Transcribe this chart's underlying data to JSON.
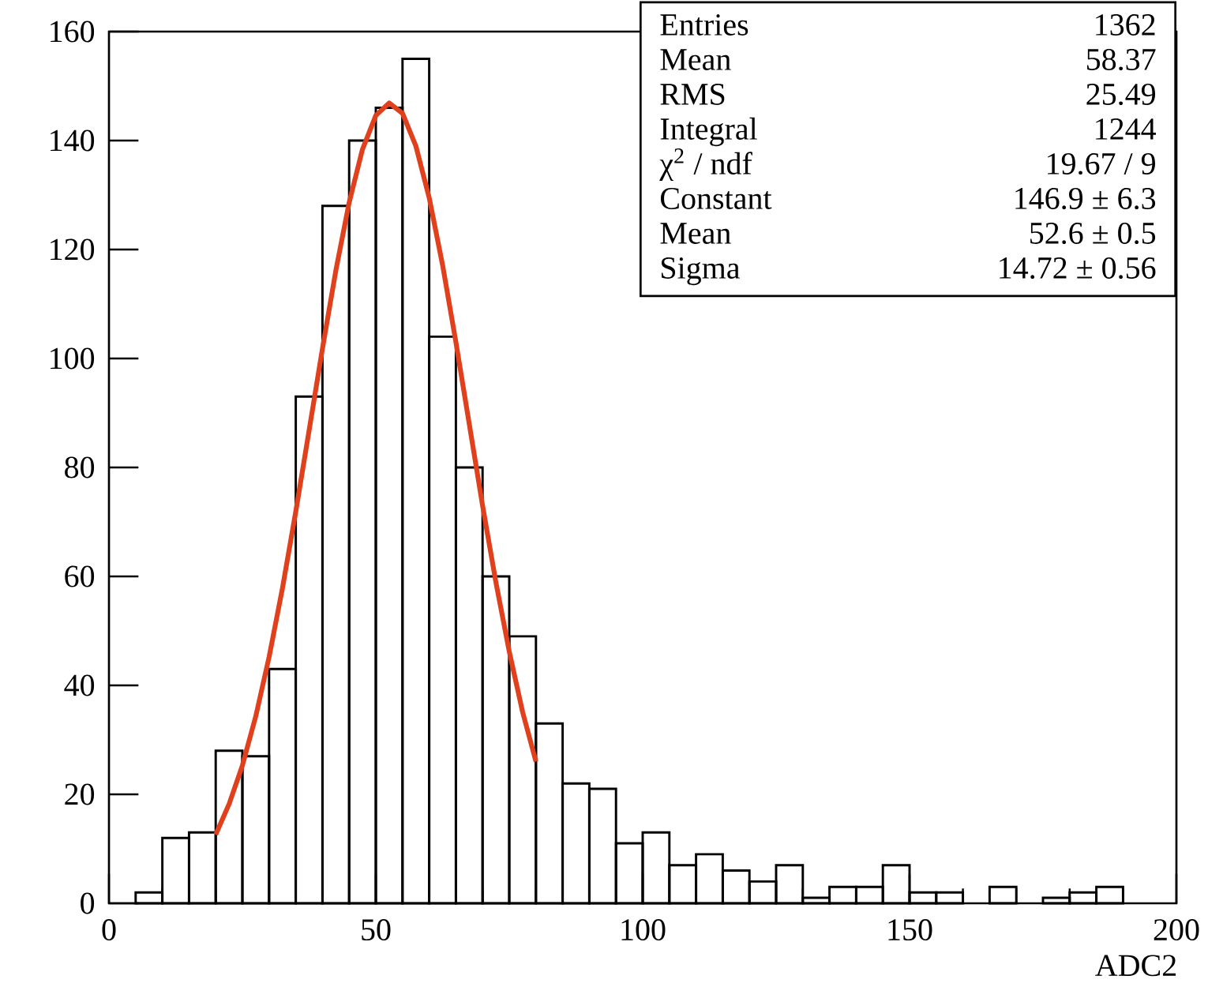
{
  "chart_data": {
    "type": "histogram",
    "xlabel": "ADC2",
    "color": "#000000",
    "bins": [
      0,
      5,
      10,
      15,
      20,
      25,
      30,
      35,
      40,
      45,
      50,
      55,
      60,
      65,
      70,
      75,
      80,
      85,
      90,
      95,
      100,
      105,
      110,
      115,
      120,
      125,
      130,
      135,
      140,
      145,
      150,
      155,
      160,
      165,
      170,
      175,
      180,
      185,
      190,
      195,
      200
    ],
    "values": [
      0,
      2,
      12,
      13,
      28,
      27,
      43,
      93,
      128,
      140,
      146,
      155,
      104,
      80,
      60,
      49,
      33,
      22,
      21,
      11,
      13,
      7,
      9,
      6,
      4,
      7,
      1,
      3,
      3,
      7,
      2,
      2,
      0,
      3,
      0,
      1,
      2,
      3,
      0,
      0
    ],
    "series": [
      {
        "type": "line",
        "color": "#e0401c",
        "x": [
          20,
          22.5,
          25,
          27.5,
          30,
          32.5,
          35,
          37.5,
          40,
          42.5,
          45,
          47.5,
          50,
          52.5,
          55,
          57.5,
          60,
          62.5,
          65,
          67.5,
          70,
          72.5,
          75,
          77.5,
          80
        ],
        "values": [
          12.6,
          18.2,
          25.3,
          34.3,
          45.2,
          57.8,
          71.9,
          86.8,
          101.8,
          116.1,
          128.6,
          138.4,
          144.6,
          146.9,
          145.0,
          139.0,
          129.5,
          117.2,
          103.0,
          88.0,
          73.0,
          58.9,
          46.2,
          35.1,
          26.0
        ]
      }
    ],
    "xlim": [
      0,
      200
    ],
    "ylim": [
      0,
      160
    ],
    "xticks": [
      0,
      50,
      100,
      150,
      200
    ],
    "yticks": [
      0,
      20,
      40,
      60,
      80,
      100,
      120,
      140,
      160
    ],
    "annotations": [
      "Entries",
      "1362",
      "Mean",
      "58.37",
      "RMS",
      "25.49",
      "Integral",
      "1244",
      "χ$^{2}$ / ndf",
      "19.67 / 9",
      "Constant",
      "146.9 ± 6.3",
      "Mean",
      "52.6 ± 0.5",
      "Sigma",
      "14.72 ± 0.56"
    ]
  }
}
